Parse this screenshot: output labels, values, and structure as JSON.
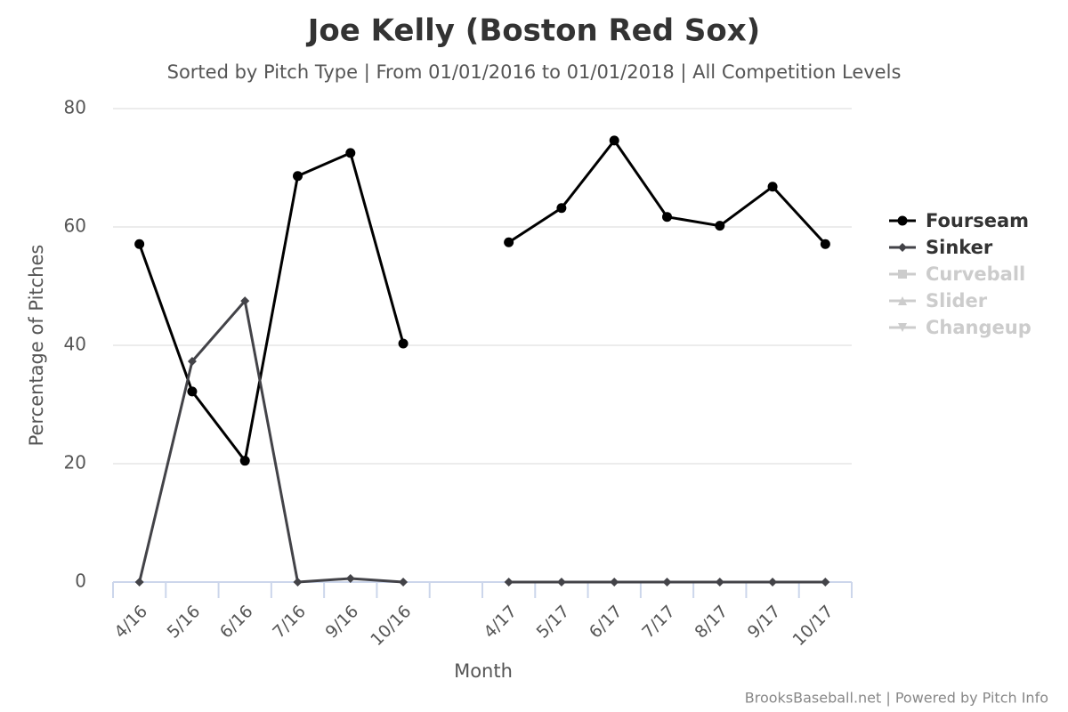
{
  "chart_data": {
    "type": "line",
    "title": "Joe Kelly (Boston Red Sox)",
    "subtitle": "Sorted by Pitch Type | From 01/01/2016 to 01/01/2018 | All Competition Levels",
    "x_label": "Month",
    "y_label": "Percentage of Pitches",
    "credits": "BrooksBaseball.net | Powered by Pitch Info",
    "categories": [
      "4/16",
      "5/16",
      "6/16",
      "7/16",
      "9/16",
      "10/16",
      null,
      "4/17",
      "5/17",
      "6/17",
      "7/17",
      "8/17",
      "9/17",
      "10/17"
    ],
    "series": [
      {
        "name": "Fourseam",
        "color": "#000000",
        "marker": "circle",
        "hidden": false,
        "values": [
          57.1,
          32.2,
          20.5,
          68.6,
          72.5,
          40.3,
          null,
          57.4,
          63.2,
          74.6,
          61.7,
          60.2,
          66.8,
          57.1
        ]
      },
      {
        "name": "Sinker",
        "color": "#434348",
        "marker": "diamond",
        "hidden": false,
        "values": [
          0,
          37.3,
          47.5,
          0,
          0.6,
          0,
          null,
          0,
          0,
          0,
          0,
          0,
          0,
          0
        ]
      },
      {
        "name": "Curveball",
        "color": "#cccccc",
        "marker": "square",
        "hidden": true,
        "values": [
          null,
          null,
          null,
          null,
          null,
          null,
          null,
          null,
          null,
          null,
          null,
          null,
          null,
          null
        ]
      },
      {
        "name": "Slider",
        "color": "#cccccc",
        "marker": "triangle",
        "hidden": true,
        "values": [
          null,
          null,
          null,
          null,
          null,
          null,
          null,
          null,
          null,
          null,
          null,
          null,
          null,
          null
        ]
      },
      {
        "name": "Changeup",
        "color": "#cccccc",
        "marker": "triangle-down",
        "hidden": true,
        "values": [
          null,
          null,
          null,
          null,
          null,
          null,
          null,
          null,
          null,
          null,
          null,
          null,
          null,
          null
        ]
      }
    ],
    "ylim": [
      0,
      80
    ],
    "yticks": [
      0,
      20,
      40,
      60,
      80
    ],
    "grid": true,
    "legend": "right"
  }
}
